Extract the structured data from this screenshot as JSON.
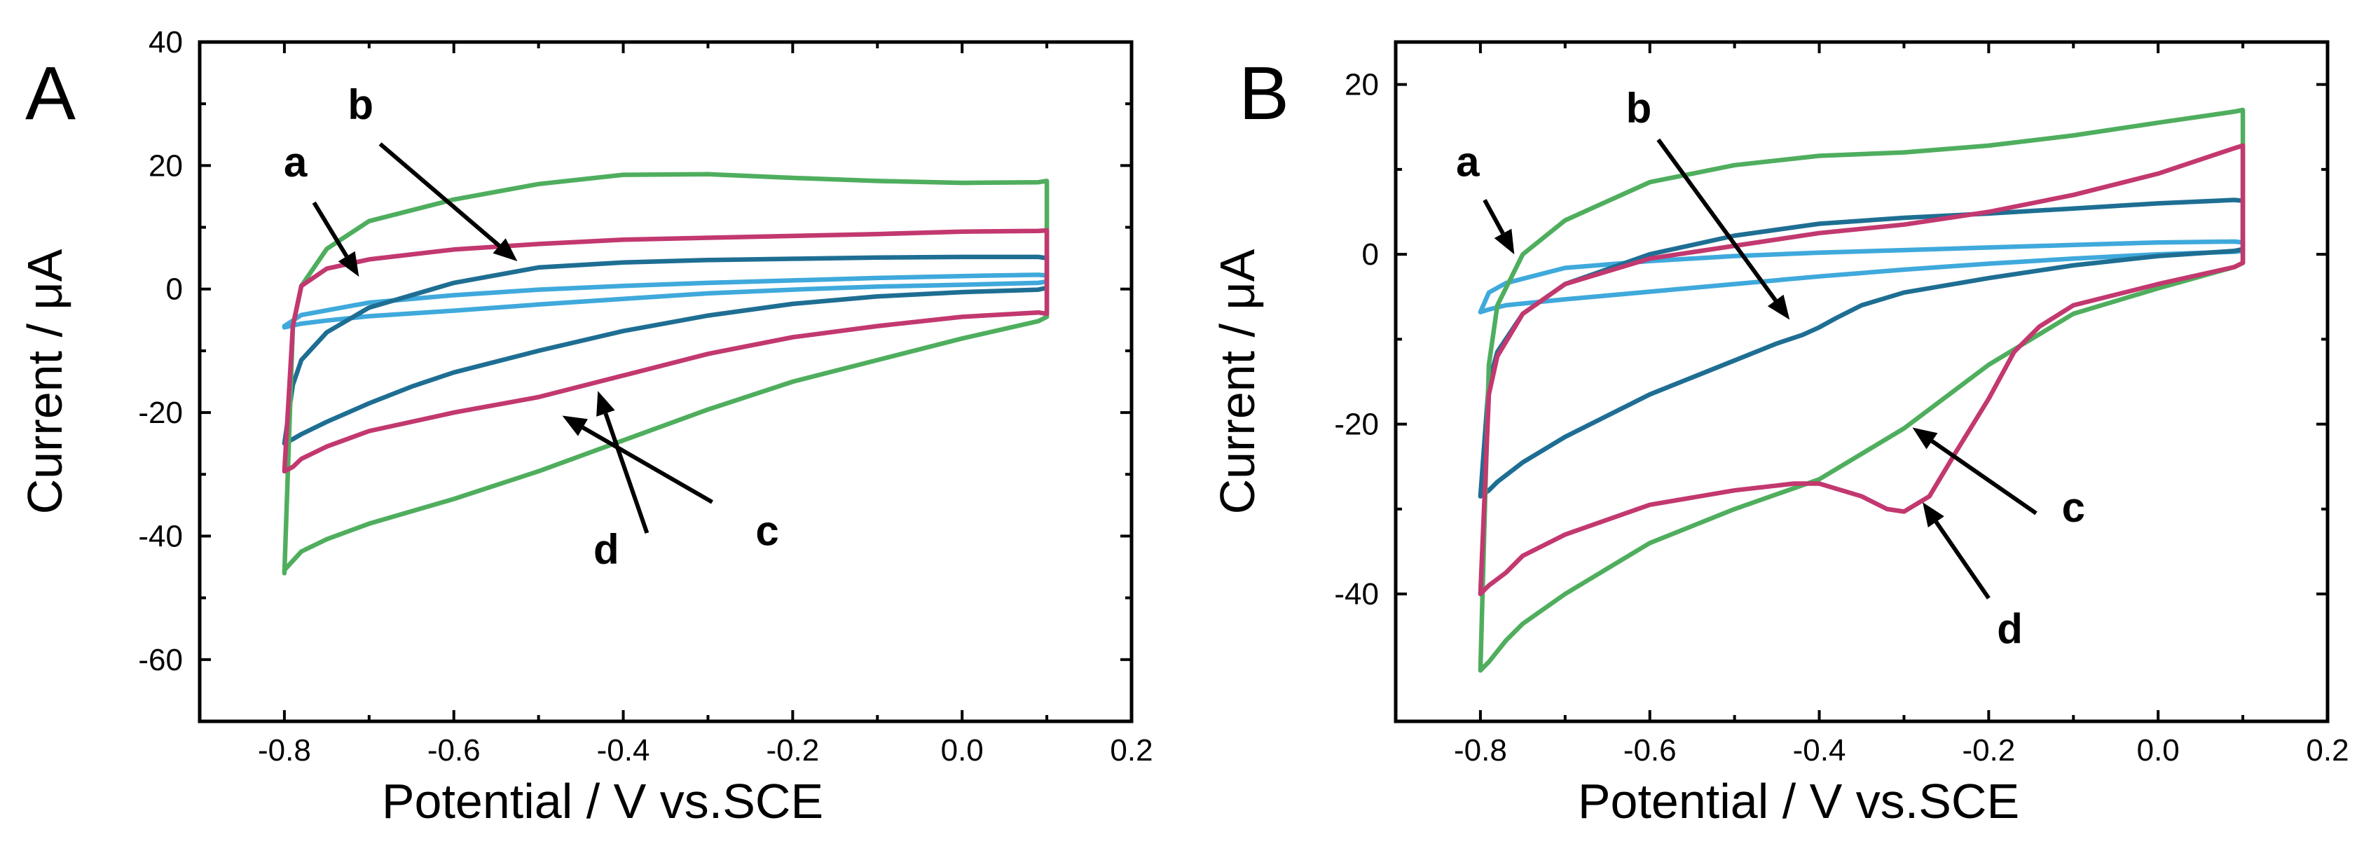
{
  "chart_data": [
    {
      "type": "line",
      "panel_label": "A",
      "xlabel": "Potential / V vs.SCE",
      "ylabel": "Current / μA",
      "xlim": [
        -0.9,
        0.2
      ],
      "ylim": [
        -70,
        40
      ],
      "xticks": [
        -0.8,
        -0.6,
        -0.4,
        -0.2,
        0.0,
        0.2
      ],
      "xtick_labels": [
        "-0.8",
        "-0.6",
        "-0.4",
        "-0.2",
        "0.0",
        "0.2"
      ],
      "yticks": [
        -60,
        -40,
        -20,
        0,
        20,
        40
      ],
      "ytick_labels": [
        "-60",
        "-40",
        "-20",
        "0",
        "20",
        "40"
      ],
      "series": [
        {
          "name": "a",
          "color": "#3fa9dc",
          "x": [
            -0.8,
            -0.78,
            -0.75,
            -0.7,
            -0.6,
            -0.5,
            -0.4,
            -0.3,
            -0.2,
            -0.1,
            0.0,
            0.09,
            0.1,
            0.1,
            0.09,
            0.0,
            -0.1,
            -0.2,
            -0.3,
            -0.4,
            -0.5,
            -0.6,
            -0.7,
            -0.78,
            -0.8
          ],
          "y": [
            -6.2,
            -5.6,
            -5.1,
            -4.4,
            -3.5,
            -2.5,
            -1.6,
            -0.7,
            -0.1,
            0.4,
            0.7,
            1.0,
            1.2,
            2.2,
            2.3,
            2.1,
            1.8,
            1.4,
            1.0,
            0.5,
            -0.1,
            -1.0,
            -2.2,
            -4.2,
            -6.0
          ]
        },
        {
          "name": "b",
          "color": "#1e6e93",
          "x": [
            -0.8,
            -0.79,
            -0.78,
            -0.75,
            -0.7,
            -0.65,
            -0.6,
            -0.5,
            -0.4,
            -0.3,
            -0.2,
            -0.1,
            0.0,
            0.09,
            0.1,
            0.1,
            0.09,
            0.0,
            -0.1,
            -0.2,
            -0.3,
            -0.4,
            -0.5,
            -0.6,
            -0.7,
            -0.75,
            -0.78,
            -0.79,
            -0.8
          ],
          "y": [
            -25.0,
            -24.3,
            -23.5,
            -21.5,
            -18.5,
            -15.8,
            -13.5,
            -10.0,
            -6.8,
            -4.3,
            -2.4,
            -1.2,
            -0.5,
            -0.1,
            0.2,
            5.0,
            5.2,
            5.2,
            5.1,
            4.9,
            4.7,
            4.3,
            3.5,
            1.0,
            -3.0,
            -7.0,
            -11.5,
            -15.5,
            -25.0
          ]
        },
        {
          "name": "c",
          "color": "#4fae5e",
          "x": [
            -0.8,
            -0.8,
            -0.78,
            -0.75,
            -0.7,
            -0.6,
            -0.5,
            -0.4,
            -0.3,
            -0.2,
            -0.1,
            0.0,
            0.09,
            0.1,
            0.1,
            0.09,
            0.0,
            -0.1,
            -0.2,
            -0.3,
            -0.4,
            -0.5,
            -0.6,
            -0.7,
            -0.75,
            -0.78,
            -0.79,
            -0.8
          ],
          "y": [
            -46.0,
            -45.5,
            -42.5,
            -40.5,
            -38.0,
            -34.0,
            -29.5,
            -24.5,
            -19.5,
            -15.0,
            -11.5,
            -8.0,
            -5.2,
            -4.5,
            17.5,
            17.3,
            17.2,
            17.5,
            18.0,
            18.6,
            18.5,
            17.0,
            14.5,
            11.0,
            6.5,
            0.5,
            -6.0,
            -46.0
          ]
        },
        {
          "name": "d",
          "color": "#c2386f",
          "x": [
            -0.8,
            -0.79,
            -0.78,
            -0.75,
            -0.7,
            -0.6,
            -0.5,
            -0.4,
            -0.3,
            -0.2,
            -0.1,
            0.0,
            0.09,
            0.1,
            0.1,
            0.09,
            0.0,
            -0.1,
            -0.2,
            -0.3,
            -0.4,
            -0.5,
            -0.6,
            -0.7,
            -0.75,
            -0.78,
            -0.79,
            -0.8
          ],
          "y": [
            -29.5,
            -28.8,
            -27.5,
            -25.5,
            -23.0,
            -20.0,
            -17.5,
            -14.0,
            -10.5,
            -7.8,
            -6.0,
            -4.5,
            -3.8,
            -4.0,
            9.5,
            9.4,
            9.3,
            8.9,
            8.6,
            8.3,
            8.0,
            7.3,
            6.4,
            4.8,
            3.3,
            0.5,
            -6.0,
            -29.5
          ]
        }
      ],
      "annotations": [
        {
          "text": "a",
          "label_x": -0.787,
          "label_y": 18.2,
          "arrow_from": [
            -0.765,
            14.0
          ],
          "arrow_to": [
            -0.712,
            2.0
          ]
        },
        {
          "text": "b",
          "label_x": -0.71,
          "label_y": 27.5,
          "arrow_from": [
            -0.687,
            23.5
          ],
          "arrow_to": [
            -0.525,
            4.5
          ]
        },
        {
          "text": "c",
          "label_x": -0.23,
          "label_y": -41.5,
          "arrow_from": [
            -0.295,
            -34.5
          ],
          "arrow_to": [
            -0.472,
            -20.5
          ]
        },
        {
          "text": "d",
          "label_x": -0.42,
          "label_y": -44.5,
          "arrow_from": [
            -0.372,
            -39.5
          ],
          "arrow_to": [
            -0.43,
            -16.5
          ]
        }
      ]
    },
    {
      "type": "line",
      "panel_label": "B",
      "xlabel": "Potential / V vs.SCE",
      "ylabel": "Current / μA",
      "xlim": [
        -0.9,
        0.2
      ],
      "ylim": [
        -55,
        25
      ],
      "xticks": [
        -0.8,
        -0.6,
        -0.4,
        -0.2,
        0.0,
        0.2
      ],
      "xtick_labels": [
        "-0.8",
        "-0.6",
        "-0.4",
        "-0.2",
        "0.0",
        "0.2"
      ],
      "yticks": [
        -40,
        -20,
        0,
        20
      ],
      "ytick_labels": [
        "-40",
        "-20",
        "0",
        "20"
      ],
      "series": [
        {
          "name": "a",
          "color": "#3fa9dc",
          "x": [
            -0.8,
            -0.79,
            -0.77,
            -0.7,
            -0.6,
            -0.5,
            -0.4,
            -0.3,
            -0.2,
            -0.1,
            0.0,
            0.09,
            0.1,
            0.1,
            0.09,
            0.0,
            -0.1,
            -0.2,
            -0.3,
            -0.4,
            -0.5,
            -0.6,
            -0.7,
            -0.77,
            -0.79,
            -0.8
          ],
          "y": [
            -6.8,
            -6.5,
            -6.0,
            -5.3,
            -4.4,
            -3.5,
            -2.6,
            -1.8,
            -1.1,
            -0.5,
            0.0,
            0.3,
            0.4,
            1.4,
            1.5,
            1.4,
            1.1,
            0.8,
            0.5,
            0.2,
            -0.2,
            -0.8,
            -1.6,
            -3.4,
            -4.5,
            -6.8
          ]
        },
        {
          "name": "b",
          "color": "#1e6e93",
          "x": [
            -0.8,
            -0.79,
            -0.78,
            -0.75,
            -0.7,
            -0.6,
            -0.5,
            -0.45,
            -0.42,
            -0.4,
            -0.38,
            -0.35,
            -0.3,
            -0.2,
            -0.1,
            0.0,
            0.09,
            0.1,
            0.1,
            0.09,
            0.0,
            -0.1,
            -0.2,
            -0.3,
            -0.4,
            -0.5,
            -0.6,
            -0.7,
            -0.75,
            -0.78,
            -0.79,
            -0.8
          ],
          "y": [
            -28.5,
            -27.8,
            -26.8,
            -24.5,
            -21.5,
            -16.5,
            -12.5,
            -10.5,
            -9.5,
            -8.6,
            -7.5,
            -6.0,
            -4.5,
            -2.8,
            -1.3,
            -0.2,
            0.4,
            0.6,
            6.3,
            6.4,
            6.0,
            5.4,
            4.8,
            4.3,
            3.6,
            2.2,
            0.0,
            -3.5,
            -7.0,
            -11.5,
            -15.0,
            -28.5
          ]
        },
        {
          "name": "c",
          "color": "#4fae5e",
          "x": [
            -0.8,
            -0.79,
            -0.77,
            -0.75,
            -0.7,
            -0.6,
            -0.5,
            -0.4,
            -0.3,
            -0.2,
            -0.1,
            0.0,
            0.09,
            0.1,
            0.1,
            0.09,
            0.0,
            -0.1,
            -0.2,
            -0.3,
            -0.4,
            -0.5,
            -0.6,
            -0.7,
            -0.75,
            -0.78,
            -0.79,
            -0.8
          ],
          "y": [
            -49.0,
            -48.0,
            -45.5,
            -43.5,
            -40.0,
            -34.0,
            -30.0,
            -26.5,
            -20.5,
            -13.0,
            -7.0,
            -4.0,
            -1.5,
            -1.0,
            17.0,
            16.8,
            15.5,
            14.0,
            12.8,
            12.0,
            11.6,
            10.5,
            8.5,
            4.0,
            0.0,
            -6.0,
            -13.0,
            -49.0
          ]
        },
        {
          "name": "d",
          "color": "#c2386f",
          "x": [
            -0.8,
            -0.79,
            -0.77,
            -0.75,
            -0.7,
            -0.6,
            -0.5,
            -0.43,
            -0.4,
            -0.35,
            -0.32,
            -0.3,
            -0.27,
            -0.24,
            -0.2,
            -0.17,
            -0.14,
            -0.1,
            0.0,
            0.09,
            0.1,
            0.1,
            0.09,
            0.0,
            -0.1,
            -0.2,
            -0.3,
            -0.4,
            -0.5,
            -0.6,
            -0.7,
            -0.75,
            -0.78,
            -0.79,
            -0.8
          ],
          "y": [
            -40.0,
            -39.0,
            -37.5,
            -35.5,
            -33.0,
            -29.5,
            -27.8,
            -27.0,
            -27.0,
            -28.5,
            -30.0,
            -30.3,
            -28.5,
            -23.5,
            -17.0,
            -11.5,
            -8.5,
            -6.0,
            -3.5,
            -1.5,
            -1.0,
            12.8,
            12.5,
            9.5,
            7.0,
            5.0,
            3.5,
            2.5,
            1.0,
            -0.5,
            -3.5,
            -7.0,
            -12.0,
            -16.5,
            -40.0
          ]
        }
      ],
      "annotations": [
        {
          "text": "a",
          "label_x": -0.815,
          "label_y": 9.2,
          "arrow_from": [
            -0.795,
            6.4
          ],
          "arrow_to": [
            -0.76,
            0.0
          ]
        },
        {
          "text": "b",
          "label_x": -0.613,
          "label_y": 15.5,
          "arrow_from": [
            -0.59,
            13.5
          ],
          "arrow_to": [
            -0.435,
            -7.7
          ]
        },
        {
          "text": "c",
          "label_x": -0.1,
          "label_y": -31.5,
          "arrow_from": [
            -0.144,
            -30.5
          ],
          "arrow_to": [
            -0.29,
            -20.4
          ]
        },
        {
          "text": "d",
          "label_x": -0.175,
          "label_y": -45.8,
          "arrow_from": [
            -0.2,
            -40.5
          ],
          "arrow_to": [
            -0.278,
            -29.2
          ]
        }
      ]
    }
  ]
}
